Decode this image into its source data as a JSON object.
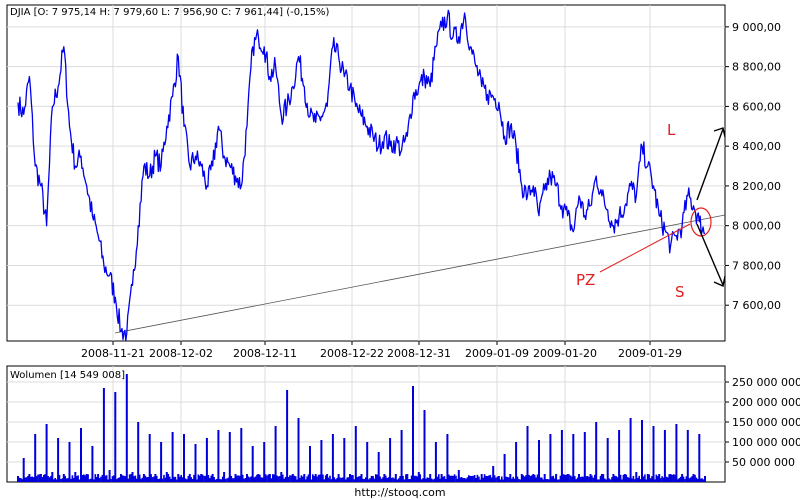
{
  "chart_data": [
    {
      "type": "line",
      "title": "DJIA [O: 7 975,14  H: 7 979,60  L: 7 956,90  C: 7 961,44] (-0,15%)",
      "xlabel": "",
      "ylabel": "",
      "ylim": [
        7420,
        9110
      ],
      "grid": true,
      "x_ticks": [
        "2008-11-21",
        "2008-12-02",
        "2008-12-11",
        "2008-12-22",
        "2008-12-31",
        "2009-01-09",
        "2009-01-20",
        "2009-01-29"
      ],
      "y_ticks": [
        "7 600,00",
        "7 800,00",
        "8 000,00",
        "8 200,00",
        "8 400,00",
        "8 600,00",
        "8 800,00",
        "9 000,00"
      ],
      "y_tick_values": [
        7600,
        7800,
        8000,
        8200,
        8400,
        8600,
        8800,
        9000
      ],
      "series_color": "#0000ee",
      "series": [
        {
          "name": "DJIA",
          "points": [
            [
              0,
              8620
            ],
            [
              1,
              8560
            ],
            [
              2,
              8750
            ],
            [
              3,
              8300
            ],
            [
              4,
              8200
            ],
            [
              5,
              8000
            ],
            [
              6,
              8600
            ],
            [
              7,
              8700
            ],
            [
              8,
              8900
            ],
            [
              9,
              8500
            ],
            [
              10,
              8300
            ],
            [
              11,
              8350
            ],
            [
              12,
              8200
            ],
            [
              13,
              8050
            ],
            [
              14,
              7950
            ],
            [
              15,
              7800
            ],
            [
              16,
              7750
            ],
            [
              17,
              7640
            ],
            [
              18,
              7470
            ],
            [
              19,
              7460
            ],
            [
              20,
              7700
            ],
            [
              21,
              8000
            ],
            [
              22,
              8300
            ],
            [
              23,
              8250
            ],
            [
              24,
              8350
            ],
            [
              25,
              8300
            ],
            [
              26,
              8500
            ],
            [
              27,
              8650
            ],
            [
              28,
              8850
            ],
            [
              29,
              8500
            ],
            [
              30,
              8300
            ],
            [
              31,
              8350
            ],
            [
              32,
              8300
            ],
            [
              33,
              8200
            ],
            [
              34,
              8300
            ],
            [
              35,
              8500
            ],
            [
              36,
              8350
            ],
            [
              37,
              8300
            ],
            [
              38,
              8250
            ],
            [
              39,
              8200
            ],
            [
              40,
              8500
            ],
            [
              41,
              8900
            ],
            [
              42,
              8950
            ],
            [
              43,
              8900
            ],
            [
              44,
              8750
            ],
            [
              45,
              8800
            ],
            [
              46,
              8550
            ],
            [
              47,
              8600
            ],
            [
              48,
              8700
            ],
            [
              49,
              8850
            ],
            [
              50,
              8700
            ],
            [
              51,
              8550
            ],
            [
              52,
              8520
            ],
            [
              53,
              8550
            ],
            [
              54,
              8600
            ],
            [
              55,
              8900
            ],
            [
              56,
              8850
            ],
            [
              57,
              8750
            ],
            [
              58,
              8700
            ],
            [
              59,
              8600
            ],
            [
              60,
              8550
            ],
            [
              61,
              8500
            ],
            [
              62,
              8450
            ],
            [
              63,
              8400
            ],
            [
              64,
              8450
            ],
            [
              65,
              8400
            ],
            [
              66,
              8420
            ],
            [
              67,
              8380
            ],
            [
              68,
              8450
            ],
            [
              69,
              8650
            ],
            [
              70,
              8700
            ],
            [
              71,
              8750
            ],
            [
              72,
              8700
            ],
            [
              73,
              8900
            ],
            [
              74,
              9000
            ],
            [
              75,
              9050
            ],
            [
              76,
              8950
            ],
            [
              77,
              8950
            ],
            [
              78,
              9070
            ],
            [
              79,
              8900
            ],
            [
              80,
              8800
            ],
            [
              81,
              8700
            ],
            [
              82,
              8660
            ],
            [
              83,
              8650
            ],
            [
              84,
              8620
            ],
            [
              85,
              8450
            ],
            [
              86,
              8500
            ],
            [
              87,
              8400
            ],
            [
              88,
              8200
            ],
            [
              89,
              8150
            ],
            [
              90,
              8200
            ],
            [
              91,
              8050
            ],
            [
              92,
              8180
            ],
            [
              93,
              8250
            ],
            [
              94,
              8200
            ],
            [
              95,
              8100
            ],
            [
              96,
              8050
            ],
            [
              97,
              7970
            ],
            [
              98,
              8150
            ],
            [
              99,
              8050
            ],
            [
              100,
              8100
            ],
            [
              101,
              8250
            ],
            [
              102,
              8150
            ],
            [
              103,
              8080
            ],
            [
              104,
              8000
            ],
            [
              105,
              8050
            ],
            [
              106,
              8100
            ],
            [
              107,
              8200
            ],
            [
              108,
              8150
            ],
            [
              109,
              8400
            ],
            [
              110,
              8300
            ],
            [
              111,
              8200
            ],
            [
              112,
              8050
            ],
            [
              113,
              7980
            ],
            [
              114,
              7900
            ],
            [
              115,
              7950
            ],
            [
              116,
              8000
            ],
            [
              117,
              8150
            ],
            [
              118,
              8100
            ],
            [
              119,
              8020
            ],
            [
              120,
              7961
            ]
          ]
        }
      ],
      "annotations": [
        "L",
        "PZ",
        "S"
      ]
    },
    {
      "type": "bar",
      "title": "Wolumen [14 549 008]",
      "xlabel": "",
      "ylabel": "",
      "ylim": [
        0,
        290000000
      ],
      "grid": true,
      "y_ticks": [
        "50 000 000",
        "100 000 000",
        "150 000 000",
        "200 000 000",
        "250 000 000"
      ],
      "y_tick_values": [
        50000000,
        100000000,
        150000000,
        200000000,
        250000000
      ],
      "bar_color": "#0000dd",
      "values": [
        15000000,
        60000000,
        20000000,
        120000000,
        20000000,
        145000000,
        25000000,
        110000000,
        20000000,
        100000000,
        25000000,
        135000000,
        20000000,
        90000000,
        20000000,
        235000000,
        30000000,
        225000000,
        20000000,
        270000000,
        25000000,
        150000000,
        20000000,
        120000000,
        20000000,
        100000000,
        25000000,
        125000000,
        20000000,
        120000000,
        20000000,
        95000000,
        20000000,
        110000000,
        20000000,
        130000000,
        25000000,
        125000000,
        20000000,
        135000000,
        20000000,
        90000000,
        20000000,
        100000000,
        20000000,
        140000000,
        25000000,
        230000000,
        20000000,
        160000000,
        20000000,
        90000000,
        20000000,
        105000000,
        20000000,
        120000000,
        20000000,
        110000000,
        20000000,
        140000000,
        20000000,
        100000000,
        15000000,
        75000000,
        20000000,
        110000000,
        20000000,
        130000000,
        20000000,
        240000000,
        25000000,
        180000000,
        20000000,
        100000000,
        20000000,
        120000000,
        15000000,
        30000000,
        10000000,
        15000000,
        10000000,
        20000000,
        15000000,
        40000000,
        15000000,
        70000000,
        20000000,
        100000000,
        20000000,
        140000000,
        20000000,
        105000000,
        20000000,
        120000000,
        20000000,
        130000000,
        20000000,
        120000000,
        20000000,
        125000000,
        20000000,
        150000000,
        20000000,
        110000000,
        20000000,
        130000000,
        20000000,
        160000000,
        25000000,
        155000000,
        20000000,
        140000000,
        20000000,
        130000000,
        20000000,
        145000000,
        20000000,
        130000000,
        20000000,
        120000000,
        15000000
      ]
    }
  ],
  "footer": {
    "url": "http://stooq.com"
  }
}
